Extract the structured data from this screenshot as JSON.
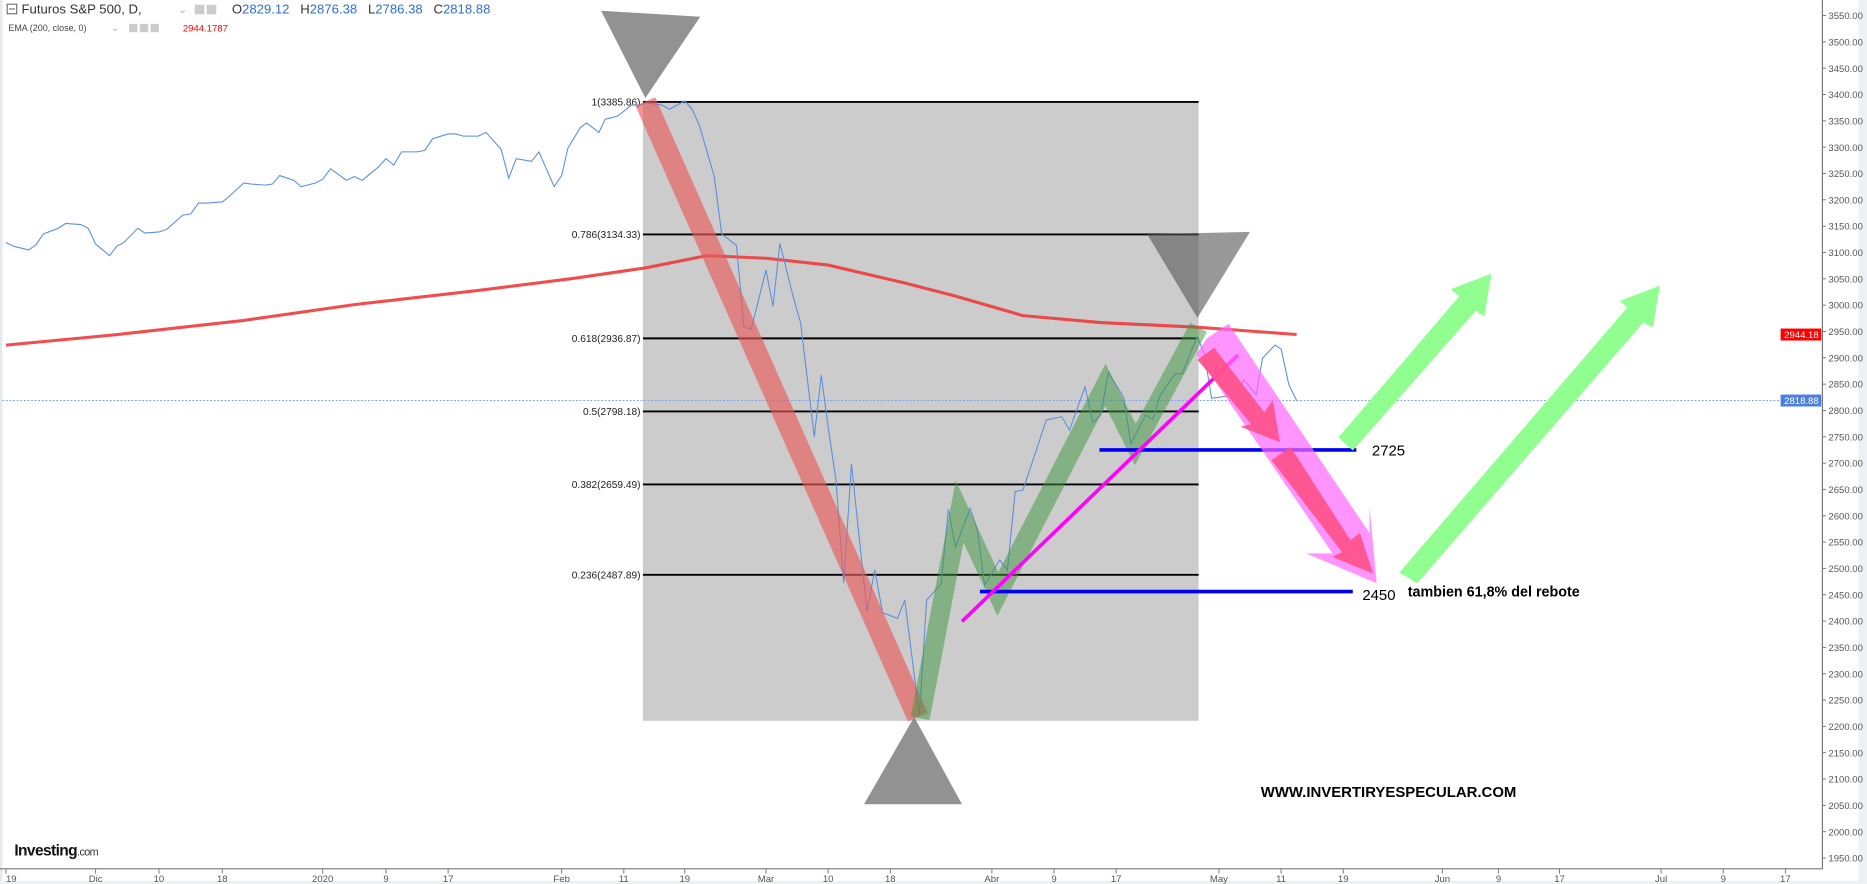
{
  "header": {
    "symbol": "Futuros S&P 500, D,",
    "ohlc": [
      {
        "label": "O",
        "value": "2829.12"
      },
      {
        "label": "H",
        "value": "2876.38"
      },
      {
        "label": "L",
        "value": "2786.38"
      },
      {
        "label": "C",
        "value": "2818.88"
      }
    ],
    "indicator": "EMA (200, close, 0)",
    "indicator_value": "2944.1787"
  },
  "colors": {
    "price_line": "#5b8fe0",
    "ema_line": "#ee3b3b",
    "ohlc_value": "#2f6fd6",
    "indicator_value": "#ff0000",
    "fib_zone": "#cccccc",
    "support_line": "#0000ee",
    "trend_line": "#ff00ff",
    "bull_arrow": "#90ff90",
    "bear_arrow": "#ff5590"
  },
  "logo": "Investing.com",
  "chart_data": {
    "type": "line",
    "title": "",
    "xlabel": "",
    "ylabel": "",
    "ylim": [
      1925,
      3575
    ],
    "grid": false,
    "y_ticks": [
      "3550.00",
      "3500.00",
      "3450.00",
      "3400.00",
      "3350.00",
      "3300.00",
      "3250.00",
      "3200.00",
      "3150.00",
      "3100.00",
      "3050.00",
      "3000.00",
      "2950.00",
      "2900.00",
      "2850.00",
      "2800.00",
      "2750.00",
      "2700.00",
      "2650.00",
      "2600.00",
      "2550.00",
      "2500.00",
      "2450.00",
      "2400.00",
      "2350.00",
      "2300.00",
      "2250.00",
      "2200.00",
      "2150.00",
      "2100.00",
      "2050.00",
      "2000.00",
      "1950.00"
    ],
    "x_ticks": [
      {
        "label": "19",
        "date": "2019-11-19"
      },
      {
        "label": "Dic",
        "date": "2019-12-01"
      },
      {
        "label": "10",
        "date": "2019-12-10"
      },
      {
        "label": "18",
        "date": "2019-12-18"
      },
      {
        "label": "2020",
        "date": "2020-01-01"
      },
      {
        "label": "9",
        "date": "2020-01-09"
      },
      {
        "label": "17",
        "date": "2020-01-17"
      },
      {
        "label": "Feb",
        "date": "2020-02-01"
      },
      {
        "label": "11",
        "date": "2020-02-11"
      },
      {
        "label": "19",
        "date": "2020-02-19"
      },
      {
        "label": "Mar",
        "date": "2020-03-01"
      },
      {
        "label": "10",
        "date": "2020-03-10"
      },
      {
        "label": "18",
        "date": "2020-03-18"
      },
      {
        "label": "Abr",
        "date": "2020-04-01"
      },
      {
        "label": "9",
        "date": "2020-04-09"
      },
      {
        "label": "17",
        "date": "2020-04-17"
      },
      {
        "label": "May",
        "date": "2020-05-01"
      },
      {
        "label": "11",
        "date": "2020-05-11"
      },
      {
        "label": "19",
        "date": "2020-05-19"
      },
      {
        "label": "Jun",
        "date": "2020-06-01"
      },
      {
        "label": "9",
        "date": "2020-06-09"
      },
      {
        "label": "17",
        "date": "2020-06-17"
      },
      {
        "label": "Jul",
        "date": "2020-07-01"
      },
      {
        "label": "9",
        "date": "2020-07-09"
      },
      {
        "label": "17",
        "date": "2020-07-17"
      }
    ],
    "series": [
      {
        "name": "Futuros S&P 500",
        "points": [
          [
            "2019-11-19",
            3119
          ],
          [
            "2019-11-20",
            3112
          ],
          [
            "2019-11-22",
            3105
          ],
          [
            "2019-11-23",
            3114
          ],
          [
            "2019-11-24",
            3135
          ],
          [
            "2019-11-26",
            3146
          ],
          [
            "2019-11-27",
            3155
          ],
          [
            "2019-11-29",
            3153
          ],
          [
            "2019-11-30",
            3146
          ],
          [
            "2019-12-01",
            3116
          ],
          [
            "2019-12-03",
            3094
          ],
          [
            "2019-12-04",
            3112
          ],
          [
            "2019-12-05",
            3119
          ],
          [
            "2019-12-07",
            3146
          ],
          [
            "2019-12-08",
            3137
          ],
          [
            "2019-12-10",
            3139
          ],
          [
            "2019-12-11",
            3144
          ],
          [
            "2019-12-13",
            3171
          ],
          [
            "2019-12-14",
            3173
          ],
          [
            "2019-12-15",
            3194
          ],
          [
            "2019-12-16",
            3194
          ],
          [
            "2019-12-18",
            3196
          ],
          [
            "2019-12-19",
            3207
          ],
          [
            "2019-12-21",
            3232
          ],
          [
            "2019-12-22",
            3230
          ],
          [
            "2019-12-24",
            3228
          ],
          [
            "2019-12-25",
            3230
          ],
          [
            "2019-12-26",
            3246
          ],
          [
            "2019-12-28",
            3237
          ],
          [
            "2019-12-29",
            3225
          ],
          [
            "2019-12-31",
            3232
          ],
          [
            "2020-01-01",
            3239
          ],
          [
            "2020-01-02",
            3259
          ],
          [
            "2020-01-04",
            3237
          ],
          [
            "2020-01-05",
            3244
          ],
          [
            "2020-01-06",
            3237
          ],
          [
            "2020-01-08",
            3262
          ],
          [
            "2020-01-09",
            3278
          ],
          [
            "2020-01-10",
            3266
          ],
          [
            "2020-01-11",
            3291
          ],
          [
            "2020-01-13",
            3291
          ],
          [
            "2020-01-14",
            3294
          ],
          [
            "2020-01-15",
            3316
          ],
          [
            "2020-01-17",
            3325
          ],
          [
            "2020-01-18",
            3325
          ],
          [
            "2020-01-19",
            3321
          ],
          [
            "2020-01-21",
            3321
          ],
          [
            "2020-01-22",
            3328
          ],
          [
            "2020-01-24",
            3296
          ],
          [
            "2020-01-25",
            3241
          ],
          [
            "2020-01-26",
            3278
          ],
          [
            "2020-01-28",
            3273
          ],
          [
            "2020-01-29",
            3291
          ],
          [
            "2020-01-31",
            3225
          ],
          [
            "2020-02-01",
            3246
          ],
          [
            "2020-02-02",
            3298
          ],
          [
            "2020-02-04",
            3337
          ],
          [
            "2020-02-05",
            3346
          ],
          [
            "2020-02-07",
            3328
          ],
          [
            "2020-02-08",
            3353
          ],
          [
            "2020-02-10",
            3359
          ],
          [
            "2020-02-12",
            3380
          ],
          [
            "2020-02-13",
            3380
          ],
          [
            "2020-02-14",
            3384
          ],
          [
            "2020-02-16",
            3380
          ],
          [
            "2020-02-17",
            3372
          ],
          [
            "2020-02-19",
            3388
          ],
          [
            "2020-02-20",
            3372
          ],
          [
            "2020-02-21",
            3340
          ],
          [
            "2020-02-23",
            3244
          ],
          [
            "2020-02-24",
            3135
          ],
          [
            "2020-02-26",
            3113
          ],
          [
            "2020-02-27",
            2959
          ],
          [
            "2020-02-28",
            2954
          ],
          [
            "2020-03-01",
            3067
          ],
          [
            "2020-03-02",
            2998
          ],
          [
            "2020-03-03",
            3117
          ],
          [
            "2020-03-05",
            3013
          ],
          [
            "2020-03-06",
            2967
          ],
          [
            "2020-03-08",
            2750
          ],
          [
            "2020-03-09",
            2867
          ],
          [
            "2020-03-10",
            2769
          ],
          [
            "2020-03-11",
            2668
          ],
          [
            "2020-03-12",
            2472
          ],
          [
            "2020-03-13",
            2699
          ],
          [
            "2020-03-15",
            2418
          ],
          [
            "2020-03-16",
            2497
          ],
          [
            "2020-03-17",
            2416
          ],
          [
            "2020-03-19",
            2405
          ],
          [
            "2020-03-20",
            2440
          ],
          [
            "2020-03-22",
            2221
          ],
          [
            "2020-03-23",
            2440
          ],
          [
            "2020-03-25",
            2470
          ],
          [
            "2020-03-26",
            2612
          ],
          [
            "2020-03-27",
            2541
          ],
          [
            "2020-03-29",
            2614
          ],
          [
            "2020-03-30",
            2573
          ],
          [
            "2020-03-31",
            2468
          ],
          [
            "2020-04-02",
            2516
          ],
          [
            "2020-04-03",
            2497
          ],
          [
            "2020-04-04",
            2646
          ],
          [
            "2020-04-05",
            2649
          ],
          [
            "2020-04-07",
            2737
          ],
          [
            "2020-04-08",
            2782
          ],
          [
            "2020-04-10",
            2788
          ],
          [
            "2020-04-11",
            2763
          ],
          [
            "2020-04-13",
            2845
          ],
          [
            "2020-04-14",
            2777
          ],
          [
            "2020-04-15",
            2791
          ],
          [
            "2020-04-16",
            2872
          ],
          [
            "2020-04-18",
            2826
          ],
          [
            "2020-04-19",
            2737
          ],
          [
            "2020-04-21",
            2791
          ],
          [
            "2020-04-22",
            2783
          ],
          [
            "2020-04-23",
            2829
          ],
          [
            "2020-04-25",
            2869
          ],
          [
            "2020-04-26",
            2870
          ],
          [
            "2020-04-28",
            2940
          ],
          [
            "2020-04-29",
            2909
          ],
          [
            "2020-04-30",
            2823
          ],
          [
            "2020-05-04",
            2830
          ],
          [
            "2020-05-05",
            2858
          ],
          [
            "2020-05-07",
            2830
          ],
          [
            "2020-05-08",
            2899
          ],
          [
            "2020-05-10",
            2924
          ],
          [
            "2020-05-11",
            2917
          ],
          [
            "2020-05-12",
            2849
          ],
          [
            "2020-05-13",
            2818.88
          ]
        ]
      },
      {
        "name": "EMA (200, close, 0)",
        "points": [
          [
            "2019-11-19",
            2924
          ],
          [
            "2019-12-04",
            2944
          ],
          [
            "2019-12-21",
            2971
          ],
          [
            "2020-01-05",
            3001
          ],
          [
            "2020-01-21",
            3028
          ],
          [
            "2020-02-03",
            3051
          ],
          [
            "2020-02-14",
            3071
          ],
          [
            "2020-02-22",
            3094
          ],
          [
            "2020-03-01",
            3089
          ],
          [
            "2020-03-10",
            3076
          ],
          [
            "2020-03-20",
            3042
          ],
          [
            "2020-03-27",
            3017
          ],
          [
            "2020-04-05",
            2980
          ],
          [
            "2020-04-15",
            2967
          ],
          [
            "2020-04-28",
            2958
          ],
          [
            "2020-05-13",
            2944.18
          ]
        ]
      }
    ],
    "price_badges": {
      "ema": "2944.18",
      "last": "2818.88"
    },
    "fibonacci": {
      "high": 3385.86,
      "low": 2210.5,
      "levels": [
        {
          "label": "1(3385.86)",
          "price": 3385.86
        },
        {
          "label": "0.786(3134.33)",
          "price": 3134.33
        },
        {
          "label": "0.618(2936.87)",
          "price": 2936.87
        },
        {
          "label": "0.5(2798.18)",
          "price": 2798.18
        },
        {
          "label": "0.382(2659.49)",
          "price": 2659.49
        },
        {
          "label": "0.236(2487.89)",
          "price": 2487.89
        }
      ]
    },
    "annotations": {
      "level_2725": "2725",
      "level_2450": "2450",
      "note_2450": "tambien 61,8% del rebote",
      "watermark": "WWW.INVERTIRYESPECULAR.COM"
    }
  }
}
